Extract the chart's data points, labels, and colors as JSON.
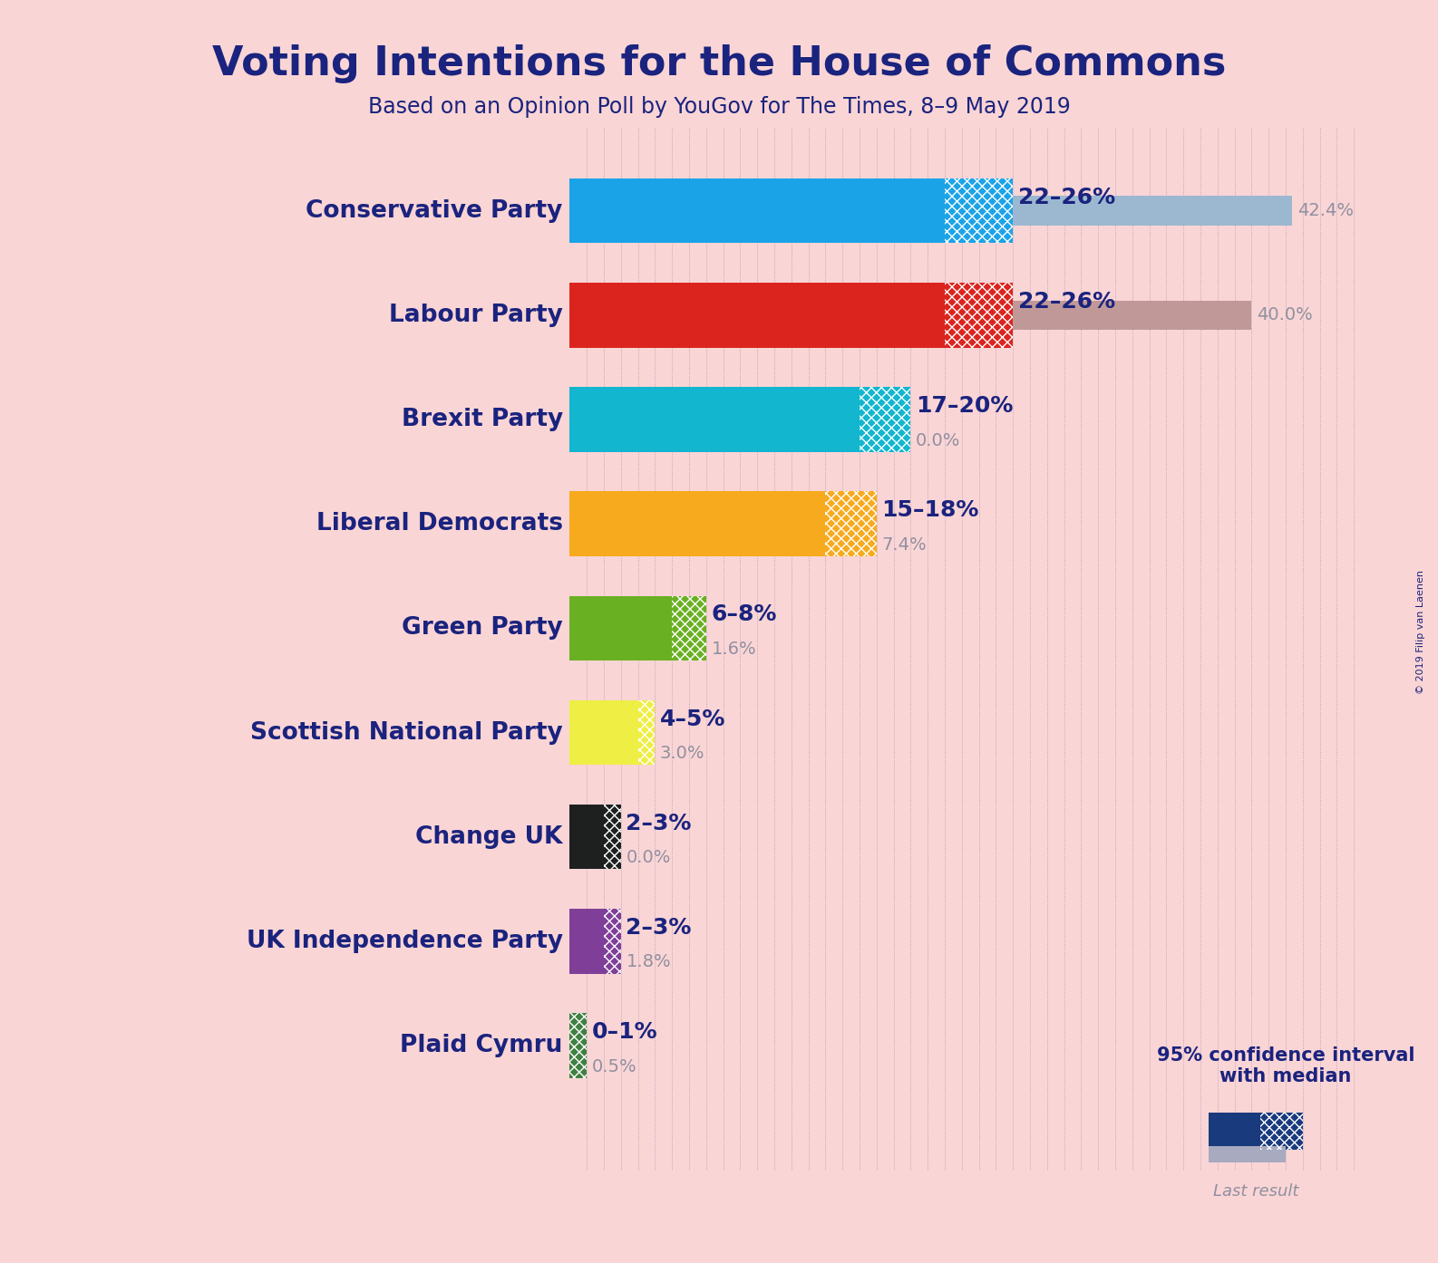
{
  "title": "Voting Intentions for the House of Commons",
  "subtitle": "Based on an Opinion Poll by YouGov for The Times, 8–9 May 2019",
  "copyright": "© 2019 Filip van Laenen",
  "background_color": "#fad5d5",
  "parties": [
    {
      "name": "Conservative Party",
      "solid_color": "#1ba3e8",
      "last_color": "#9bb8d0",
      "ci_low": 22,
      "ci_high": 26,
      "last_result": 42.4,
      "label": "22–26%",
      "last_label": "42.4%",
      "label_far_right": true
    },
    {
      "name": "Labour Party",
      "solid_color": "#dc241f",
      "last_color": "#c09898",
      "ci_low": 22,
      "ci_high": 26,
      "last_result": 40.0,
      "label": "22–26%",
      "last_label": "40.0%",
      "label_far_right": true
    },
    {
      "name": "Brexit Party",
      "solid_color": "#12b6cf",
      "last_color": null,
      "ci_low": 17,
      "ci_high": 20,
      "last_result": 0.0,
      "label": "17–20%",
      "last_label": "0.0%",
      "label_far_right": false
    },
    {
      "name": "Liberal Democrats",
      "solid_color": "#f8aa1e",
      "last_color": "#d4a878",
      "ci_low": 15,
      "ci_high": 18,
      "last_result": 7.4,
      "label": "15–18%",
      "last_label": "7.4%",
      "label_far_right": false
    },
    {
      "name": "Green Party",
      "solid_color": "#6ab023",
      "last_color": "#8aaa68",
      "ci_low": 6,
      "ci_high": 8,
      "last_result": 1.6,
      "label": "6–8%",
      "last_label": "1.6%",
      "label_far_right": false
    },
    {
      "name": "Scottish National Party",
      "solid_color": "#eeee44",
      "last_color": "#cccc88",
      "ci_low": 4,
      "ci_high": 5,
      "last_result": 3.0,
      "label": "4–5%",
      "last_label": "3.0%",
      "label_far_right": false
    },
    {
      "name": "Change UK",
      "solid_color": "#1e2020",
      "last_color": null,
      "ci_low": 2,
      "ci_high": 3,
      "last_result": 0.0,
      "label": "2–3%",
      "last_label": "0.0%",
      "label_far_right": false
    },
    {
      "name": "UK Independence Party",
      "solid_color": "#7f3f99",
      "last_color": "#b898c8",
      "ci_low": 2,
      "ci_high": 3,
      "last_result": 1.8,
      "label": "2–3%",
      "last_label": "1.8%",
      "label_far_right": false
    },
    {
      "name": "Plaid Cymru",
      "solid_color": "#3f8040",
      "last_color": "#88aa88",
      "ci_low": 0,
      "ci_high": 1,
      "last_result": 0.5,
      "label": "0–1%",
      "last_label": "0.5%",
      "label_far_right": false
    }
  ],
  "xlim_max": 47,
  "bar_height": 0.62,
  "last_bar_height": 0.28,
  "title_color": "#1a237e",
  "label_color": "#1a237e",
  "last_label_color": "#9090a0",
  "legend_navy": "#1a3a7e"
}
